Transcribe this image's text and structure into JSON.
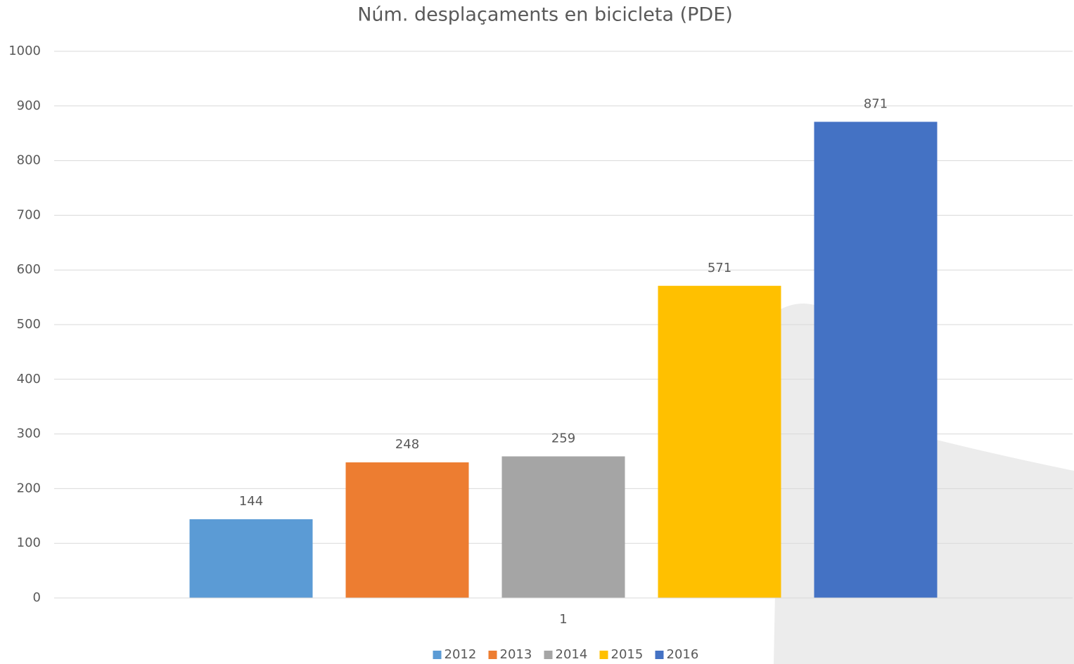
{
  "chart_data": {
    "type": "bar",
    "title": "Núm. desplaçaments en bicicleta (PDE)",
    "categories": [
      "1"
    ],
    "series": [
      {
        "name": "2012",
        "color": "#5b9bd5",
        "values": [
          144
        ]
      },
      {
        "name": "2013",
        "color": "#ed7d31",
        "values": [
          248
        ]
      },
      {
        "name": "2014",
        "color": "#a5a5a5",
        "values": [
          259
        ]
      },
      {
        "name": "2015",
        "color": "#ffc000",
        "values": [
          571
        ]
      },
      {
        "name": "2016",
        "color": "#4472c4",
        "values": [
          871
        ]
      }
    ],
    "ylim": [
      0,
      1000
    ],
    "yticks": [
      0,
      100,
      200,
      300,
      400,
      500,
      600,
      700,
      800,
      900,
      1000
    ],
    "grid": true,
    "legend": "bottom",
    "data_labels": true
  }
}
